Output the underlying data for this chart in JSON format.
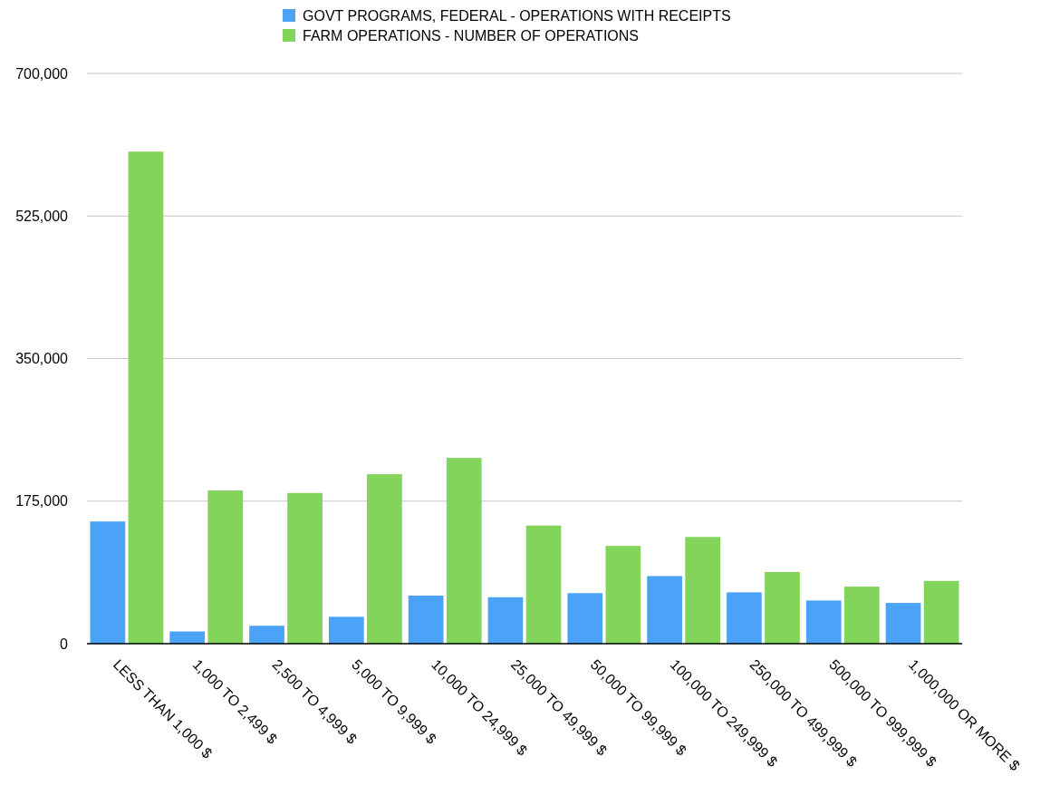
{
  "chart_data": {
    "type": "bar",
    "categories": [
      "LESS THAN 1,000 $",
      "1,000 TO 2,499 $",
      "2,500 TO 4,999 $",
      "5,000 TO 9,999 $",
      "10,000 TO 24,999 $",
      "25,000 TO 49,999 $",
      "50,000 TO 99,999 $",
      "100,000 TO 249,999 $",
      "250,000 TO 499,999 $",
      "500,000 TO 999,999 $",
      "1,000,000 OR MORE $"
    ],
    "series": [
      {
        "name": "GOVT PROGRAMS, FEDERAL - OPERATIONS WITH RECEIPTS",
        "color": "#4aa3f7",
        "values": [
          150000,
          15000,
          22000,
          33000,
          59000,
          57000,
          62000,
          83000,
          63000,
          53000,
          50000
        ]
      },
      {
        "name": "FARM OPERATIONS - NUMBER OF OPERATIONS",
        "color": "#82d45a",
        "values": [
          604000,
          188000,
          185000,
          208000,
          228000,
          145000,
          120000,
          131000,
          88000,
          70000,
          77000
        ]
      }
    ],
    "ylim": [
      0,
      700000
    ],
    "yticks": [
      0,
      {
        "value": 175000,
        "label": "175,000"
      },
      {
        "value": 350000,
        "label": "350,000"
      },
      {
        "value": 525000,
        "label": "525,000"
      },
      {
        "value": 700000,
        "label": "700,000"
      }
    ],
    "grid": "y",
    "legend": "top"
  }
}
